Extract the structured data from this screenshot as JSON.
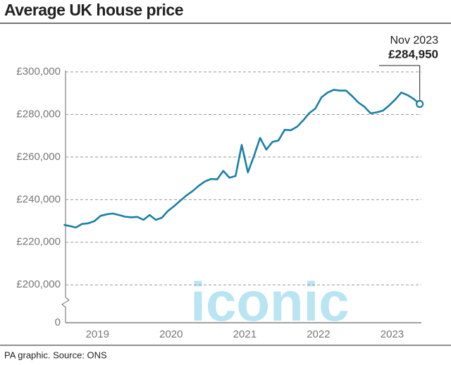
{
  "chart_data": {
    "type": "line",
    "title": "Average UK house price",
    "source": "PA graphic. Source: ONS",
    "watermark": "iconic",
    "y_axis_zero_label": "0",
    "x": [
      2019.042,
      2019.125,
      2019.208,
      2019.292,
      2019.375,
      2019.458,
      2019.542,
      2019.625,
      2019.708,
      2019.792,
      2019.875,
      2019.958,
      2020.042,
      2020.125,
      2020.208,
      2020.292,
      2020.375,
      2020.458,
      2020.542,
      2020.625,
      2020.708,
      2020.792,
      2020.875,
      2020.958,
      2021.042,
      2021.125,
      2021.208,
      2021.292,
      2021.375,
      2021.458,
      2021.542,
      2021.625,
      2021.708,
      2021.792,
      2021.875,
      2021.958,
      2022.042,
      2022.125,
      2022.208,
      2022.292,
      2022.375,
      2022.458,
      2022.542,
      2022.625,
      2022.708,
      2022.792,
      2022.875,
      2022.958,
      2023.042,
      2023.125,
      2023.208,
      2023.292,
      2023.375,
      2023.458,
      2023.542,
      2023.625,
      2023.708,
      2023.792,
      2023.875
    ],
    "series": [
      {
        "name": "Average UK house price",
        "color": "#1a7fa8",
        "values": [
          228200,
          227600,
          226900,
          228600,
          228900,
          229900,
          232400,
          233100,
          233500,
          232800,
          232000,
          231700,
          231900,
          230500,
          232800,
          230500,
          231500,
          234700,
          237000,
          239500,
          242000,
          244000,
          246500,
          248500,
          249700,
          249500,
          253500,
          250300,
          251100,
          265700,
          252800,
          260500,
          269000,
          263500,
          267100,
          267800,
          272800,
          272600,
          274200,
          277200,
          280600,
          282800,
          288100,
          290300,
          291600,
          291200,
          291200,
          288600,
          285600,
          283600,
          280500,
          281000,
          281800,
          284200,
          287000,
          290300,
          289100,
          287300,
          284950
        ]
      }
    ],
    "annotation": {
      "label": "Nov 2023",
      "value_label": "£284,950"
    },
    "xlim": [
      2019.0,
      2023.95
    ],
    "xticks": [
      {
        "value": 2019.5,
        "label": "2019"
      },
      {
        "value": 2020.5,
        "label": "2020"
      },
      {
        "value": 2021.5,
        "label": "2021"
      },
      {
        "value": 2022.5,
        "label": "2022"
      },
      {
        "value": 2023.5,
        "label": "2023"
      }
    ],
    "ylim": [
      182200,
      305000
    ],
    "yticks": [
      {
        "value": 200000,
        "label": "£200,000"
      },
      {
        "value": 220000,
        "label": "£220,000"
      },
      {
        "value": 240000,
        "label": "£240,000"
      },
      {
        "value": 260000,
        "label": "£260,000"
      },
      {
        "value": 280000,
        "label": "£280,000"
      },
      {
        "value": 300000,
        "label": "£300,000"
      }
    ],
    "grid": true
  }
}
